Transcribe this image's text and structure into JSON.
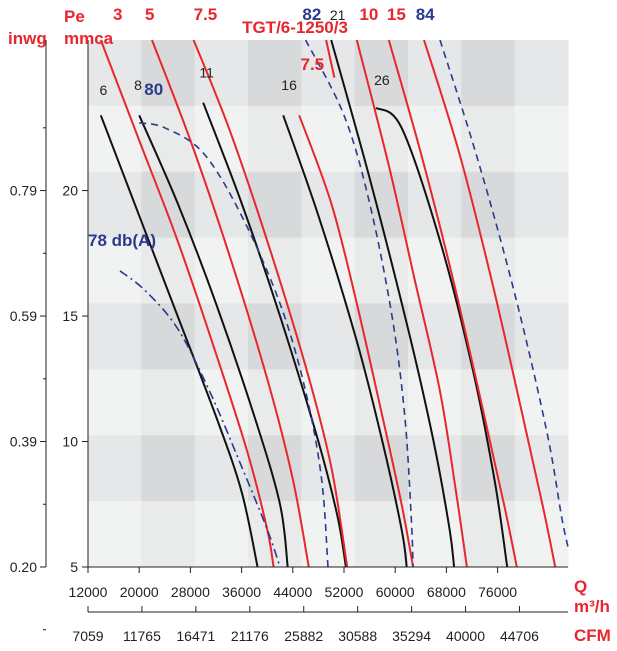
{
  "chart_data": {
    "type": "line",
    "title": "TGT/6-1250/3",
    "y_labels": {
      "top_left_1": "Pe",
      "top_left_2": "mmca",
      "left_unit": "inwg"
    },
    "x_labels": {
      "q": "Q",
      "m3h": "m³/h",
      "cfm": "CFM"
    },
    "x_ticks_m3h": [
      "12000",
      "20000",
      "28000",
      "36000",
      "44000",
      "52000",
      "60000",
      "68000",
      "76000"
    ],
    "x_ticks_cfm": [
      "7059",
      "11765",
      "16471",
      "21176",
      "25882",
      "30588",
      "35294",
      "40000",
      "44706"
    ],
    "y_ticks_mmca": [
      "5",
      "10",
      "15",
      "20"
    ],
    "y_ticks_inwg": [
      "0.20",
      "0.39",
      "0.59",
      "0.79"
    ],
    "xlim": [
      12000,
      87000
    ],
    "ylim": [
      5,
      26
    ],
    "colors": {
      "black": "#111111",
      "red": "#e8262d",
      "blue": "#2c3a8f"
    },
    "series": [
      {
        "name": "6",
        "color": "black",
        "style": "solid",
        "points": [
          [
            14000,
            23.0
          ],
          [
            20000,
            19.0
          ],
          [
            26000,
            15.0
          ],
          [
            32000,
            11.0
          ],
          [
            36000,
            8.0
          ],
          [
            38500,
            5.0
          ]
        ]
      },
      {
        "name": "8",
        "color": "black",
        "style": "solid",
        "points": [
          [
            20000,
            23.0
          ],
          [
            26000,
            19.5
          ],
          [
            32000,
            15.5
          ],
          [
            38000,
            11.0
          ],
          [
            42000,
            7.5
          ],
          [
            43200,
            5.0
          ]
        ]
      },
      {
        "name": "11",
        "color": "black",
        "style": "solid",
        "points": [
          [
            30000,
            23.5
          ],
          [
            36000,
            19.5
          ],
          [
            42000,
            15.0
          ],
          [
            48000,
            10.0
          ],
          [
            51000,
            7.0
          ],
          [
            52300,
            5.0
          ]
        ]
      },
      {
        "name": "16",
        "color": "black",
        "style": "solid",
        "points": [
          [
            42500,
            23.0
          ],
          [
            48000,
            19.0
          ],
          [
            54000,
            14.0
          ],
          [
            58000,
            10.0
          ],
          [
            61000,
            6.5
          ],
          [
            61800,
            5.0
          ]
        ]
      },
      {
        "name": "21",
        "color": "black",
        "style": "solid",
        "points": [
          [
            50000,
            26.0
          ],
          [
            56000,
            20.5
          ],
          [
            62000,
            14.5
          ],
          [
            66000,
            10.0
          ],
          [
            68500,
            6.5
          ],
          [
            69200,
            5.0
          ]
        ]
      },
      {
        "name": "26",
        "color": "black",
        "style": "solid",
        "points": [
          [
            57000,
            23.3
          ],
          [
            61000,
            22.5
          ],
          [
            67000,
            18.0
          ],
          [
            72000,
            13.0
          ],
          [
            75500,
            8.5
          ],
          [
            77500,
            5.0
          ]
        ]
      },
      {
        "name": "3",
        "color": "red",
        "style": "solid",
        "points": [
          [
            14000,
            26.0
          ],
          [
            20000,
            22.0
          ],
          [
            26000,
            18.0
          ],
          [
            32000,
            13.5
          ],
          [
            37000,
            9.5
          ],
          [
            40000,
            6.5
          ],
          [
            41000,
            5.0
          ]
        ]
      },
      {
        "name": "5",
        "color": "red",
        "style": "solid",
        "points": [
          [
            22000,
            26.0
          ],
          [
            28000,
            22.0
          ],
          [
            34000,
            17.5
          ],
          [
            40000,
            12.5
          ],
          [
            44000,
            8.5
          ],
          [
            46500,
            5.0
          ]
        ]
      },
      {
        "name": "7.5",
        "color": "red",
        "style": "solid",
        "points": [
          [
            28500,
            26.0
          ],
          [
            34000,
            22.5
          ],
          [
            40000,
            18.0
          ],
          [
            46000,
            13.0
          ],
          [
            50000,
            9.0
          ],
          [
            52500,
            5.0
          ]
        ]
      },
      {
        "name": "7.5",
        "color": "red",
        "style": "solid",
        "points": [
          [
            45000,
            23.0
          ],
          [
            50000,
            19.5
          ],
          [
            54000,
            15.5
          ],
          [
            58000,
            11.0
          ],
          [
            61000,
            7.5
          ],
          [
            62800,
            5.0
          ]
        ]
      },
      {
        "name": "10",
        "color": "red",
        "style": "solid",
        "points": [
          [
            54000,
            26.0
          ],
          [
            59000,
            21.0
          ],
          [
            63000,
            16.5
          ],
          [
            67000,
            12.0
          ],
          [
            69500,
            8.0
          ],
          [
            71200,
            5.0
          ]
        ]
      },
      {
        "name": "15",
        "color": "red",
        "style": "solid",
        "points": [
          [
            59000,
            26.0
          ],
          [
            64000,
            21.5
          ],
          [
            69000,
            16.5
          ],
          [
            73500,
            11.5
          ],
          [
            77000,
            7.5
          ],
          [
            79000,
            5.0
          ]
        ]
      },
      {
        "name": "",
        "color": "red",
        "style": "solid",
        "points": [
          [
            64500,
            26.0
          ],
          [
            70000,
            21.5
          ],
          [
            75000,
            16.5
          ],
          [
            79500,
            11.5
          ],
          [
            83000,
            7.5
          ],
          [
            85000,
            5.0
          ]
        ]
      },
      {
        "name": "",
        "color": "red",
        "style": "solid",
        "points": [
          [
            49200,
            26.0
          ],
          [
            50500,
            24.5
          ]
        ]
      },
      {
        "name": "80",
        "color": "blue",
        "style": "dashed",
        "points": [
          [
            20000,
            22.7
          ],
          [
            24000,
            22.5
          ],
          [
            30000,
            21.5
          ],
          [
            36000,
            19.0
          ],
          [
            42000,
            15.5
          ],
          [
            46000,
            12.0
          ],
          [
            48500,
            8.5
          ],
          [
            49500,
            5.0
          ]
        ]
      },
      {
        "name": "78 db(A)",
        "color": "blue",
        "style": "dashdot",
        "points": [
          [
            17000,
            16.8
          ],
          [
            21000,
            16.0
          ],
          [
            26000,
            14.5
          ],
          [
            31000,
            12.0
          ],
          [
            36000,
            9.0
          ],
          [
            40000,
            6.5
          ],
          [
            42000,
            5.0
          ]
        ]
      },
      {
        "name": "82",
        "color": "blue",
        "style": "dashed",
        "points": [
          [
            46000,
            26.0
          ],
          [
            52000,
            23.0
          ],
          [
            56000,
            19.5
          ],
          [
            59500,
            15.0
          ],
          [
            61500,
            11.0
          ],
          [
            62500,
            7.0
          ],
          [
            62800,
            5.0
          ]
        ]
      },
      {
        "name": "84",
        "color": "blue",
        "style": "dashed",
        "points": [
          [
            67000,
            26.0
          ],
          [
            72000,
            22.0
          ],
          [
            76500,
            18.0
          ],
          [
            80500,
            14.0
          ],
          [
            84000,
            10.0
          ],
          [
            86000,
            7.0
          ],
          [
            87000,
            5.8
          ]
        ]
      }
    ],
    "curve_labels": [
      {
        "text": "6",
        "color": "black"
      },
      {
        "text": "8",
        "color": "black"
      },
      {
        "text": "11",
        "color": "black"
      },
      {
        "text": "16",
        "color": "black"
      },
      {
        "text": "21",
        "color": "black"
      },
      {
        "text": "26",
        "color": "black"
      },
      {
        "text": "3",
        "color": "red"
      },
      {
        "text": "5",
        "color": "red"
      },
      {
        "text": "7.5",
        "color": "red"
      },
      {
        "text": "7.5",
        "color": "red"
      },
      {
        "text": "10",
        "color": "red"
      },
      {
        "text": "15",
        "color": "red"
      },
      {
        "text": "80",
        "color": "blue"
      },
      {
        "text": "78 db(A)",
        "color": "blue"
      },
      {
        "text": "82",
        "color": "blue"
      },
      {
        "text": "84",
        "color": "blue"
      }
    ]
  }
}
